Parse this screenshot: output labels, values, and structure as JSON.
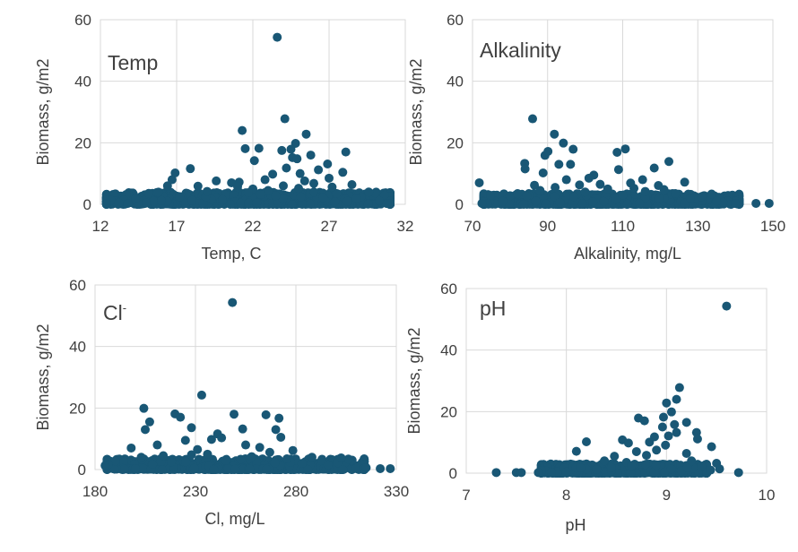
{
  "chart_data": [
    {
      "type": "scatter",
      "panel_label": "Temp",
      "xlabel": "Temp, C",
      "ylabel": "Biomass, g/m2",
      "xlim": [
        12,
        32
      ],
      "ylim": [
        0,
        60
      ],
      "xticks": [
        "12",
        "17",
        "22",
        "27",
        "32"
      ],
      "yticks": [
        "0",
        "20",
        "40",
        "60"
      ],
      "grid": true,
      "marker_color": "#195775",
      "points": [
        [
          23.6,
          54.3
        ],
        [
          24.1,
          27.8
        ],
        [
          21.3,
          24.0
        ],
        [
          25.5,
          22.8
        ],
        [
          24.8,
          19.8
        ],
        [
          21.5,
          18.1
        ],
        [
          22.4,
          18.2
        ],
        [
          24.5,
          17.9
        ],
        [
          28.1,
          17.0
        ],
        [
          23.9,
          17.5
        ],
        [
          25.8,
          16.0
        ],
        [
          24.6,
          15.2
        ],
        [
          22.1,
          14.2
        ],
        [
          24.9,
          14.8
        ],
        [
          26.9,
          13.1
        ],
        [
          17.9,
          11.6
        ],
        [
          24.2,
          11.8
        ],
        [
          26.3,
          11.2
        ],
        [
          16.9,
          10.2
        ],
        [
          27.9,
          10.4
        ],
        [
          25.1,
          10.0
        ],
        [
          23.3,
          9.8
        ],
        [
          27.0,
          8.5
        ],
        [
          16.7,
          8.0
        ],
        [
          19.6,
          7.6
        ],
        [
          21.1,
          7.2
        ],
        [
          20.6,
          7.0
        ],
        [
          18.4,
          5.9
        ],
        [
          16.4,
          6.0
        ],
        [
          28.5,
          6.4
        ],
        [
          26.0,
          6.8
        ],
        [
          22.8,
          8.0
        ],
        [
          21.0,
          5.8
        ],
        [
          29.6,
          4.0
        ],
        [
          14.3,
          1.8
        ],
        [
          13.2,
          0.5
        ],
        [
          12.4,
          0.3
        ],
        [
          30.3,
          1.2
        ],
        [
          30.8,
          0.3
        ],
        [
          15.5,
          1.0
        ],
        [
          18.9,
          2.5
        ],
        [
          20.2,
          3.0
        ],
        [
          29.1,
          2.4
        ],
        [
          16.0,
          1.2
        ],
        [
          19.0,
          4.2
        ],
        [
          22.0,
          5.0
        ],
        [
          23.0,
          4.5
        ],
        [
          24.0,
          6.0
        ],
        [
          25.0,
          5.2
        ],
        [
          26.0,
          4.0
        ],
        [
          27.5,
          3.5
        ],
        [
          28.8,
          2.0
        ],
        [
          17.2,
          2.5
        ],
        [
          18.0,
          1.2
        ],
        [
          21.7,
          3.8
        ],
        [
          23.5,
          2.8
        ],
        [
          26.6,
          2.2
        ],
        [
          20.0,
          1.5
        ],
        [
          15.0,
          0.4
        ],
        [
          13.8,
          0.3
        ],
        [
          28.2,
          1.0
        ],
        [
          27.2,
          5.6
        ],
        [
          25.4,
          7.6
        ]
      ],
      "baseline_band": {
        "x_min": 12.4,
        "x_max": 31.0,
        "y_min": 0,
        "y_max": 4
      }
    },
    {
      "type": "scatter",
      "panel_label": "Alkalinity",
      "xlabel": "Alkalinity, mg/L",
      "ylabel": "Biomass, g/m2",
      "xlim": [
        70,
        150
      ],
      "ylim": [
        0,
        60
      ],
      "xticks": [
        "70",
        "90",
        "110",
        "130",
        "150"
      ],
      "yticks": [
        "0",
        "20",
        "40",
        "60"
      ],
      "grid": true,
      "marker_color": "#195775",
      "points": [
        [
          86.0,
          27.8
        ],
        [
          91.8,
          22.8
        ],
        [
          94.2,
          19.9
        ],
        [
          96.8,
          17.9
        ],
        [
          110.7,
          18.0
        ],
        [
          108.5,
          16.9
        ],
        [
          89.3,
          15.9
        ],
        [
          90.1,
          17.2
        ],
        [
          122.3,
          13.9
        ],
        [
          93.0,
          13.0
        ],
        [
          96.1,
          13.0
        ],
        [
          83.9,
          13.3
        ],
        [
          118.4,
          11.8
        ],
        [
          84.0,
          11.5
        ],
        [
          108.9,
          11.3
        ],
        [
          88.8,
          10.2
        ],
        [
          71.8,
          7.0
        ],
        [
          126.5,
          7.2
        ],
        [
          115.3,
          8.0
        ],
        [
          112.1,
          6.9
        ],
        [
          102.3,
          9.5
        ],
        [
          98.5,
          6.3
        ],
        [
          106.0,
          5.0
        ],
        [
          119.5,
          6.1
        ],
        [
          124.0,
          3.5
        ],
        [
          80.0,
          2.8
        ],
        [
          78.0,
          1.0
        ],
        [
          74.0,
          0.3
        ],
        [
          72.5,
          0.3
        ],
        [
          135.0,
          1.0
        ],
        [
          140.0,
          0.3
        ],
        [
          145.5,
          0.3
        ],
        [
          149.0,
          0.3
        ],
        [
          131.0,
          2.5
        ],
        [
          100.0,
          4.0
        ],
        [
          104.0,
          6.5
        ],
        [
          95.0,
          8.0
        ],
        [
          88.0,
          4.5
        ],
        [
          92.0,
          5.5
        ],
        [
          110.0,
          3.0
        ],
        [
          116.0,
          4.2
        ],
        [
          128.0,
          2.0
        ],
        [
          82.0,
          3.5
        ],
        [
          97.0,
          2.5
        ],
        [
          101.0,
          8.5
        ],
        [
          113.0,
          5.2
        ],
        [
          121.0,
          4.8
        ],
        [
          86.5,
          6.2
        ]
      ],
      "baseline_band": {
        "x_min": 73,
        "x_max": 141,
        "y_min": 0,
        "y_max": 3.5
      }
    },
    {
      "type": "scatter",
      "panel_label": "Cl",
      "panel_label_superscript": "-",
      "xlabel": "Cl, mg/L",
      "ylabel": "Biomass, g/m2",
      "xlim": [
        180,
        330
      ],
      "ylim": [
        0,
        60
      ],
      "xticks": [
        "180",
        "230",
        "280",
        "330"
      ],
      "yticks": [
        "0",
        "20",
        "40",
        "60"
      ],
      "grid": true,
      "marker_color": "#195775",
      "points": [
        [
          248.4,
          54.3
        ],
        [
          233.1,
          24.2
        ],
        [
          204.3,
          19.9
        ],
        [
          219.8,
          18.1
        ],
        [
          222.5,
          17.0
        ],
        [
          265.1,
          17.8
        ],
        [
          249.2,
          18.0
        ],
        [
          271.6,
          16.7
        ],
        [
          207.2,
          15.5
        ],
        [
          241.0,
          11.6
        ],
        [
          228.0,
          13.6
        ],
        [
          253.5,
          13.2
        ],
        [
          205.0,
          13.0
        ],
        [
          270.0,
          13.0
        ],
        [
          243.0,
          10.3
        ],
        [
          238.0,
          9.8
        ],
        [
          272.5,
          10.5
        ],
        [
          211.0,
          8.0
        ],
        [
          198.0,
          7.0
        ],
        [
          225.0,
          9.5
        ],
        [
          231.0,
          6.5
        ],
        [
          262.0,
          7.2
        ],
        [
          267.0,
          5.6
        ],
        [
          278.5,
          6.2
        ],
        [
          288.0,
          4.0
        ],
        [
          302.5,
          3.8
        ],
        [
          190.0,
          2.8
        ],
        [
          186.5,
          1.6
        ],
        [
          185.0,
          1.3
        ],
        [
          315.0,
          0.6
        ],
        [
          322.0,
          0.3
        ],
        [
          327.0,
          0.3
        ],
        [
          296.0,
          1.5
        ],
        [
          214.0,
          4.5
        ],
        [
          236.0,
          5.0
        ],
        [
          258.0,
          4.2
        ],
        [
          245.0,
          3.0
        ],
        [
          218.0,
          2.5
        ],
        [
          283.0,
          2.0
        ],
        [
          255.0,
          8.0
        ],
        [
          203.0,
          4.0
        ],
        [
          228.0,
          4.8
        ]
      ],
      "baseline_band": {
        "x_min": 186,
        "x_max": 314,
        "y_min": 0,
        "y_max": 3.5
      }
    },
    {
      "type": "scatter",
      "panel_label": "pH",
      "xlabel": "pH",
      "ylabel": "Biomass, g/m2",
      "xlim": [
        7,
        10
      ],
      "ylim": [
        0,
        60
      ],
      "xticks": [
        "7",
        "8",
        "9",
        "10"
      ],
      "yticks": [
        "0",
        "20",
        "40",
        "60"
      ],
      "grid": true,
      "marker_color": "#195775",
      "points": [
        [
          9.6,
          54.3
        ],
        [
          9.13,
          27.8
        ],
        [
          9.1,
          24.0
        ],
        [
          9.0,
          22.8
        ],
        [
          9.05,
          19.9
        ],
        [
          8.97,
          18.2
        ],
        [
          8.72,
          17.9
        ],
        [
          8.78,
          17.0
        ],
        [
          9.2,
          16.5
        ],
        [
          9.08,
          15.8
        ],
        [
          8.96,
          15.0
        ],
        [
          9.1,
          13.2
        ],
        [
          9.3,
          13.2
        ],
        [
          9.02,
          12.1
        ],
        [
          8.88,
          11.8
        ],
        [
          9.31,
          11.1
        ],
        [
          8.56,
          10.8
        ],
        [
          8.83,
          10.1
        ],
        [
          8.2,
          10.2
        ],
        [
          8.62,
          9.8
        ],
        [
          8.99,
          9.1
        ],
        [
          9.45,
          8.6
        ],
        [
          8.1,
          7.1
        ],
        [
          8.7,
          7.0
        ],
        [
          8.48,
          5.5
        ],
        [
          8.38,
          4.0
        ],
        [
          7.3,
          0.2
        ],
        [
          7.5,
          0.2
        ],
        [
          7.55,
          0.2
        ],
        [
          7.72,
          0.2
        ],
        [
          7.85,
          0.3
        ],
        [
          9.5,
          3.2
        ],
        [
          9.53,
          1.4
        ],
        [
          9.44,
          1.0
        ],
        [
          9.72,
          0.2
        ],
        [
          8.3,
          1.2
        ],
        [
          8.0,
          0.4
        ],
        [
          8.6,
          3.5
        ],
        [
          8.8,
          5.8
        ],
        [
          9.2,
          6.4
        ],
        [
          9.25,
          4.0
        ],
        [
          8.9,
          7.5
        ],
        [
          8.65,
          2.5
        ],
        [
          9.35,
          2.3
        ],
        [
          8.45,
          1.8
        ]
      ],
      "baseline_band": {
        "x_min": 7.75,
        "x_max": 9.4,
        "y_min": 0,
        "y_max": 3.0
      }
    }
  ]
}
